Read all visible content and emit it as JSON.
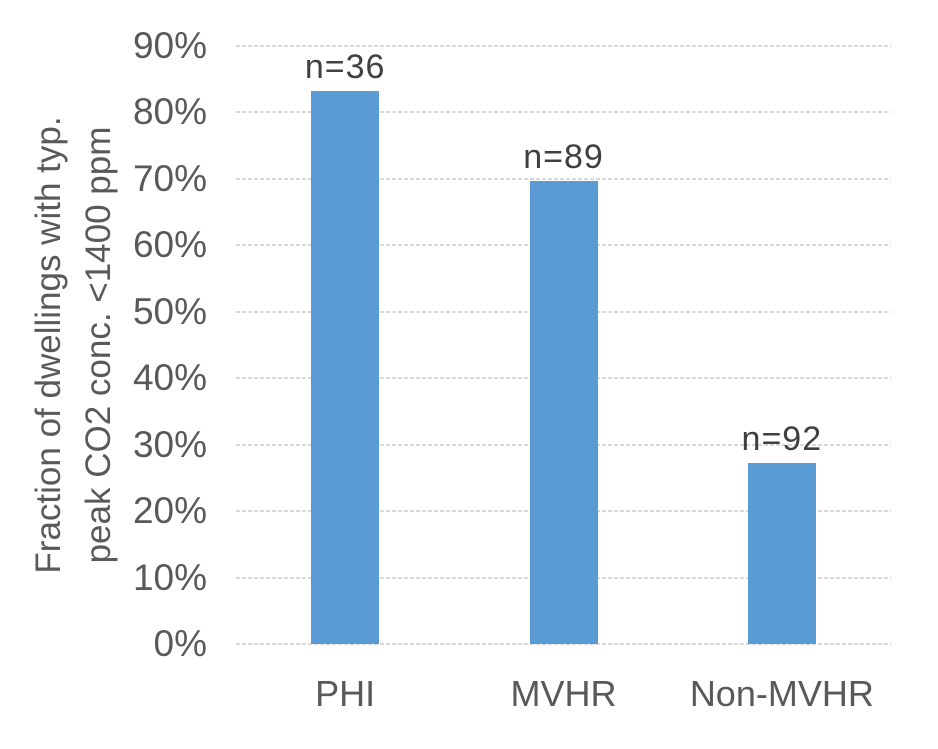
{
  "chart_data": {
    "type": "bar",
    "title": "",
    "categories": [
      "PHI",
      "MVHR",
      "Non-MVHR"
    ],
    "values": [
      83.3,
      69.7,
      27.2
    ],
    "value_unit": "%",
    "bar_labels": [
      "n=36",
      "n=89",
      "n=92"
    ],
    "ylabel": "Fraction of dwellings with typ. peak CO2 conc. <1400 ppm",
    "ylabel_line1": "Fraction of dwellings with typ.",
    "ylabel_line2": "peak CO2 conc. <1400 ppm",
    "xlabel": "",
    "ylim": [
      0,
      90
    ],
    "ytick_step": 10,
    "ytick_labels": [
      "0%",
      "10%",
      "20%",
      "30%",
      "40%",
      "50%",
      "60%",
      "70%",
      "80%",
      "90%"
    ],
    "grid": "horizontal-dotted",
    "legend": "none",
    "colors": {
      "bar": "#5B9BD5",
      "gridline": "#D9D9D9",
      "axis_text": "#595959",
      "bar_label_text": "#404040",
      "background": "#FFFFFF"
    }
  }
}
